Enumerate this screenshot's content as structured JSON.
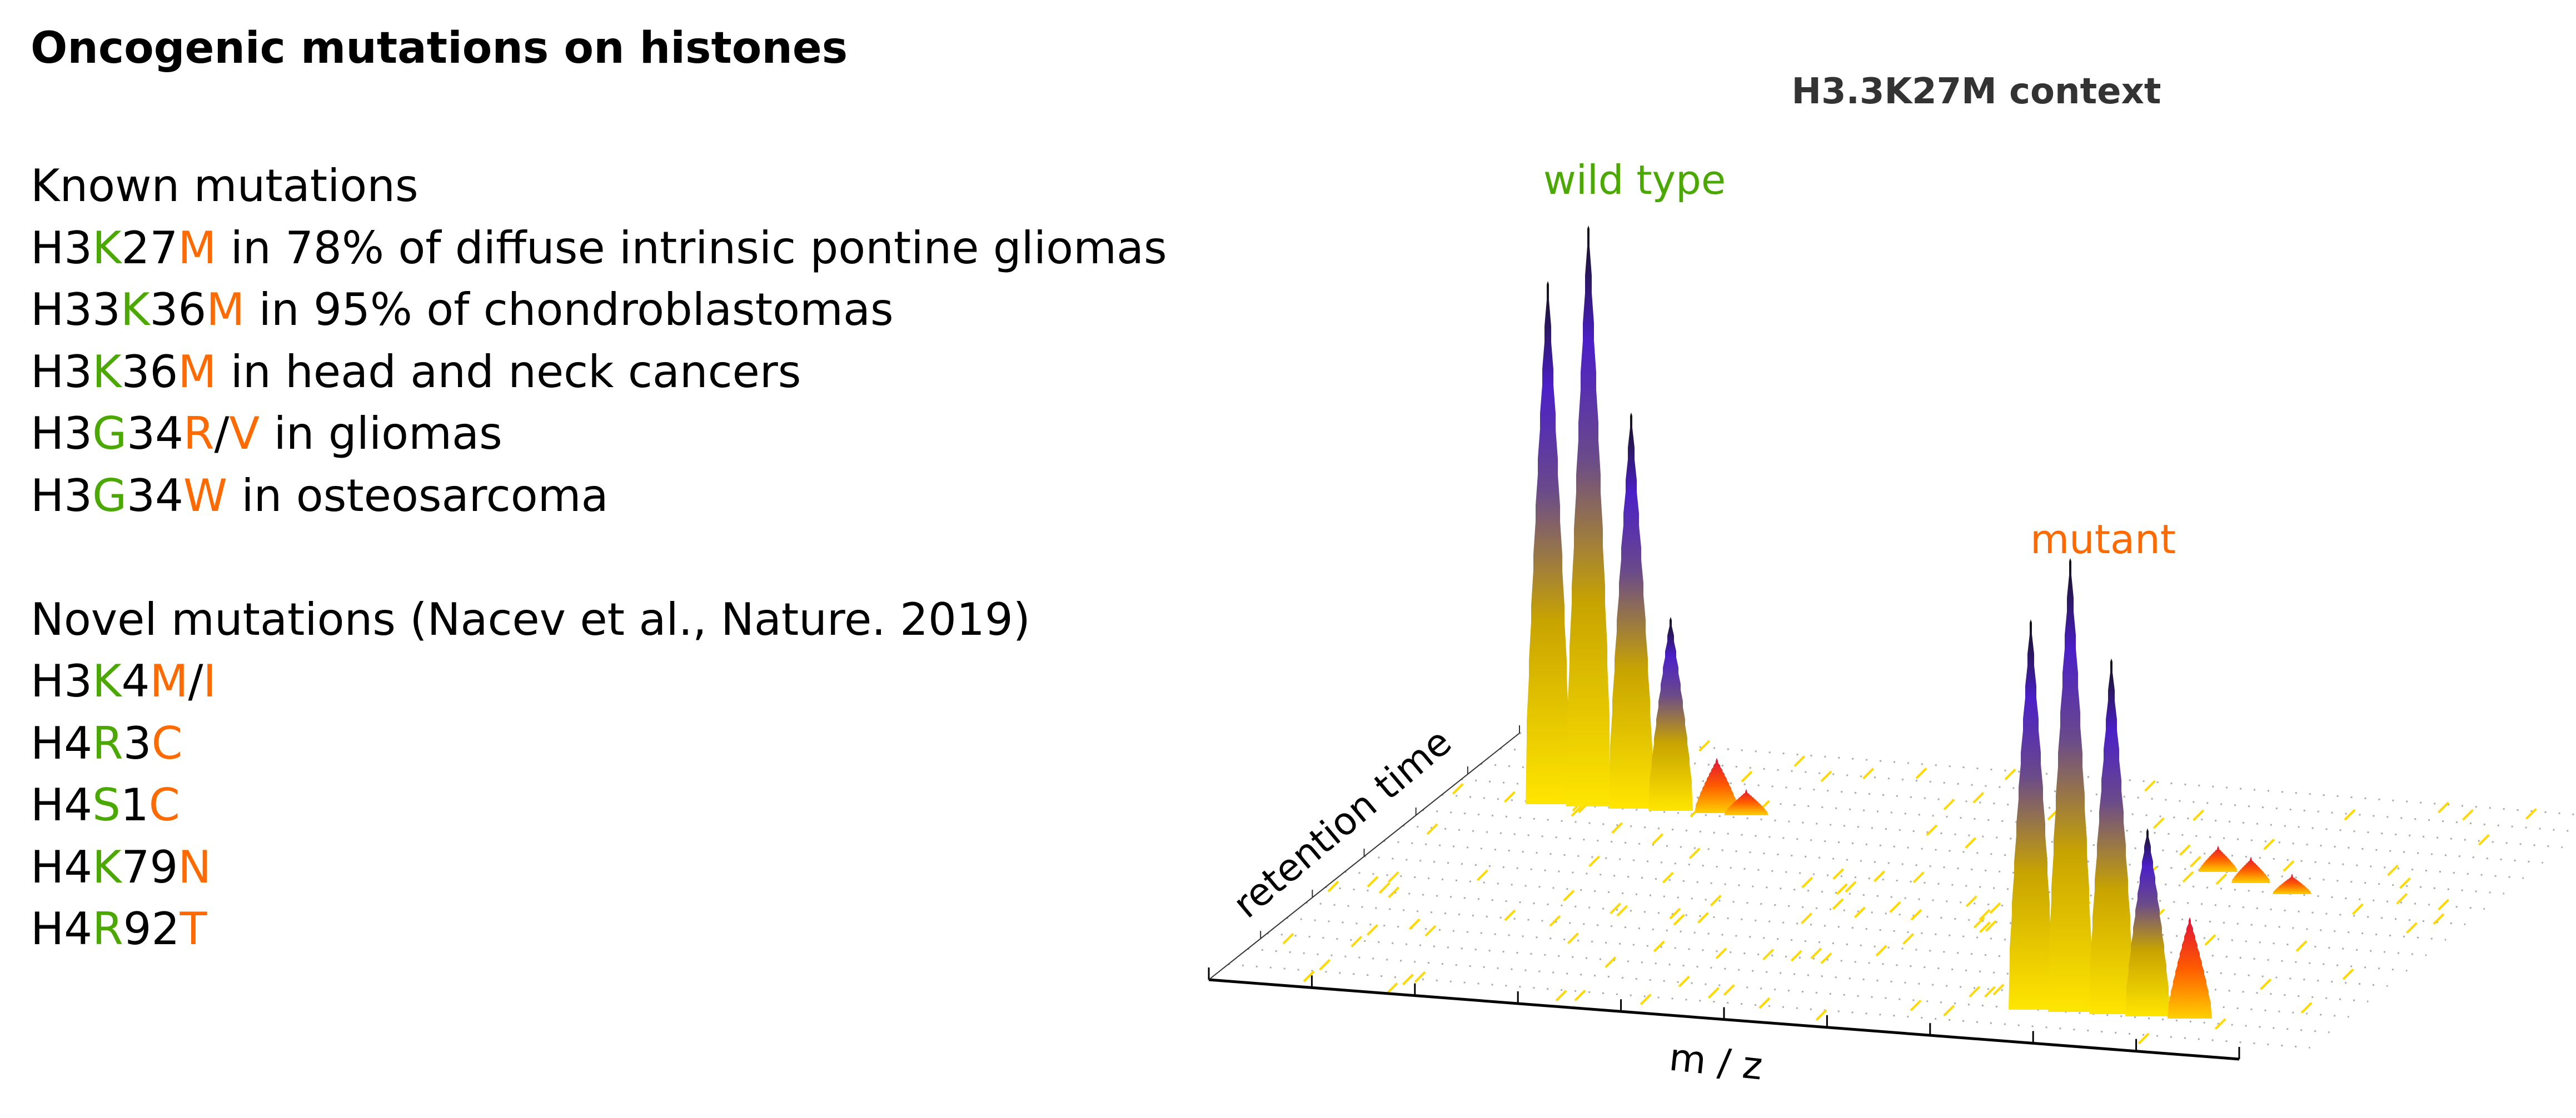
{
  "title": "Oncogenic mutations on histones",
  "colors": {
    "wild": "#4aa800",
    "mut": "#ff6a00",
    "text": "#000000"
  },
  "lines": [
    [
      {
        "t": "Known mutations",
        "c": "text"
      }
    ],
    [
      {
        "t": "H3",
        "c": "text"
      },
      {
        "t": "K",
        "c": "wild"
      },
      {
        "t": "27",
        "c": "text"
      },
      {
        "t": "M",
        "c": "mut"
      },
      {
        "t": " in 78% of diffuse intrinsic pontine gliomas",
        "c": "text"
      }
    ],
    [
      {
        "t": "H33",
        "c": "text"
      },
      {
        "t": "K",
        "c": "wild"
      },
      {
        "t": "36",
        "c": "text"
      },
      {
        "t": "M",
        "c": "mut"
      },
      {
        "t": " in 95% of chondroblastomas",
        "c": "text"
      }
    ],
    [
      {
        "t": "H3",
        "c": "text"
      },
      {
        "t": "K",
        "c": "wild"
      },
      {
        "t": "36",
        "c": "text"
      },
      {
        "t": "M",
        "c": "mut"
      },
      {
        "t": " in head and neck cancers",
        "c": "text"
      }
    ],
    [
      {
        "t": "H3",
        "c": "text"
      },
      {
        "t": "G",
        "c": "wild"
      },
      {
        "t": "34",
        "c": "text"
      },
      {
        "t": "R",
        "c": "mut"
      },
      {
        "t": "/",
        "c": "text"
      },
      {
        "t": "V",
        "c": "mut"
      },
      {
        "t": " in gliomas",
        "c": "text"
      }
    ],
    [
      {
        "t": "H3",
        "c": "text"
      },
      {
        "t": "G",
        "c": "wild"
      },
      {
        "t": "34",
        "c": "text"
      },
      {
        "t": "W",
        "c": "mut"
      },
      {
        "t": " in osteosarcoma",
        "c": "text"
      }
    ],
    [],
    [
      {
        "t": "Novel mutations (Nacev et al., Nature. 2019)",
        "c": "text"
      }
    ],
    [
      {
        "t": "H3",
        "c": "text"
      },
      {
        "t": "K",
        "c": "wild"
      },
      {
        "t": "4",
        "c": "text"
      },
      {
        "t": "M",
        "c": "mut"
      },
      {
        "t": "/",
        "c": "text"
      },
      {
        "t": "I",
        "c": "mut"
      }
    ],
    [
      {
        "t": "H4",
        "c": "text"
      },
      {
        "t": "R",
        "c": "wild"
      },
      {
        "t": "3",
        "c": "text"
      },
      {
        "t": "C",
        "c": "mut"
      }
    ],
    [
      {
        "t": "H4",
        "c": "text"
      },
      {
        "t": "S",
        "c": "wild"
      },
      {
        "t": "1",
        "c": "text"
      },
      {
        "t": "C",
        "c": "mut"
      }
    ],
    [
      {
        "t": "H4",
        "c": "text"
      },
      {
        "t": "K",
        "c": "wild"
      },
      {
        "t": "79",
        "c": "text"
      },
      {
        "t": "N",
        "c": "mut"
      }
    ],
    [
      {
        "t": "H4",
        "c": "text"
      },
      {
        "t": "R",
        "c": "wild"
      },
      {
        "t": "92",
        "c": "text"
      },
      {
        "t": "T",
        "c": "mut"
      }
    ]
  ],
  "plot": {
    "context_title": "H3.3K27M context",
    "wild_label": "wild type",
    "mutant_label": "mutant",
    "x_axis_label": "m / z",
    "depth_axis_label": "retention time",
    "wild_type_relative_intensities": [
      0.9,
      1.0,
      0.68,
      0.33,
      0.09,
      0.04
    ],
    "mutant_relative_intensities": [
      0.67,
      0.78,
      0.61,
      0.32,
      0.17
    ],
    "minor_relative_intensities": [
      0.04,
      0.04,
      0.03
    ]
  }
}
